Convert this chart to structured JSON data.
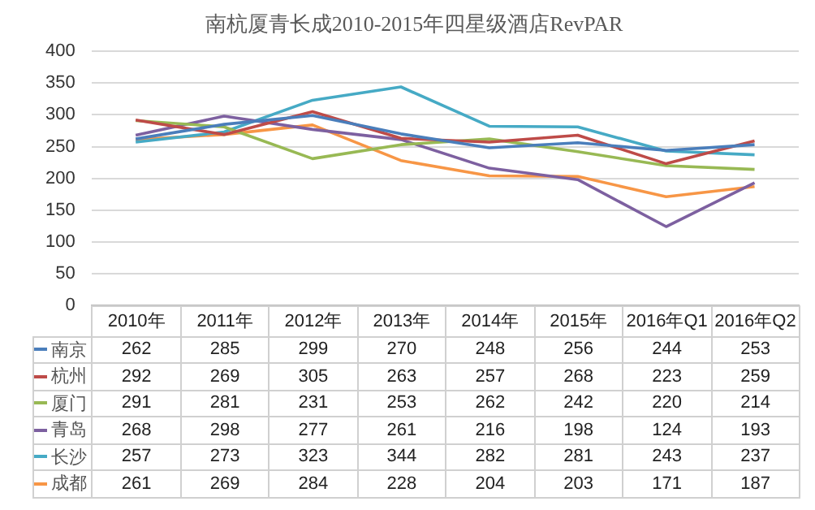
{
  "chart_data": {
    "type": "line",
    "title": "南杭厦青长成2010-2015年四星级酒店RevPAR",
    "categories": [
      "2010年",
      "2011年",
      "2012年",
      "2013年",
      "2014年",
      "2015年",
      "2016年Q1",
      "2016年Q2"
    ],
    "series": [
      {
        "name": "南京",
        "color": "#4a7ebb",
        "values": [
          262,
          285,
          299,
          270,
          248,
          256,
          244,
          253
        ]
      },
      {
        "name": "杭州",
        "color": "#be4b48",
        "values": [
          292,
          269,
          305,
          263,
          257,
          268,
          223,
          259
        ]
      },
      {
        "name": "厦门",
        "color": "#98b954",
        "values": [
          291,
          281,
          231,
          253,
          262,
          242,
          220,
          214
        ]
      },
      {
        "name": "青岛",
        "color": "#7d60a0",
        "values": [
          268,
          298,
          277,
          261,
          216,
          198,
          124,
          193
        ]
      },
      {
        "name": "长沙",
        "color": "#46aac5",
        "values": [
          257,
          273,
          323,
          344,
          282,
          281,
          243,
          237
        ]
      },
      {
        "name": "成都",
        "color": "#f79646",
        "values": [
          261,
          269,
          284,
          228,
          204,
          203,
          171,
          187
        ]
      }
    ],
    "ylim": [
      0,
      400
    ],
    "yticks": [
      0,
      50,
      100,
      150,
      200,
      250,
      300,
      350,
      400
    ],
    "grid": "y",
    "legend": "bottom",
    "data_labels": true,
    "marker": "none"
  }
}
